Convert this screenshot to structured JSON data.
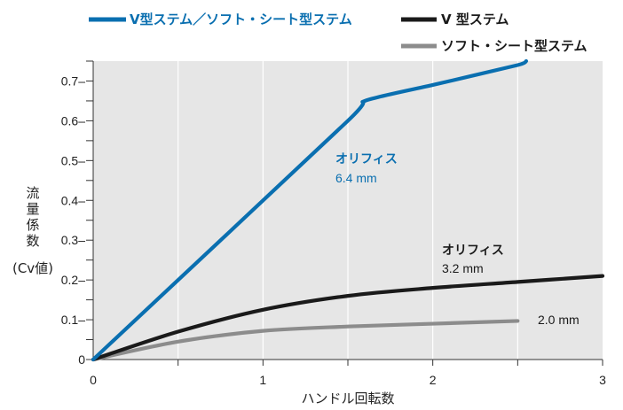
{
  "chart_data": {
    "type": "line",
    "legend": [
      {
        "label": "V型ステム／ソフト・シート型ステム",
        "color": "#0a6fb0"
      },
      {
        "label": "V 型ステム",
        "color": "#1a1a1a"
      },
      {
        "label": "ソフト・シート型ステム",
        "color": "#8c8c8c"
      }
    ],
    "series": [
      {
        "color": "#0a6fb0",
        "x": [
          0,
          1.5,
          1.6,
          2.0,
          2.5,
          2.55
        ],
        "y": [
          0,
          0.6,
          0.65,
          0.69,
          0.74,
          0.75
        ]
      },
      {
        "color": "#1a1a1a",
        "x": [
          0,
          0.5,
          1.0,
          1.5,
          2.0,
          2.5,
          3.0
        ],
        "y": [
          0,
          0.07,
          0.125,
          0.16,
          0.18,
          0.195,
          0.21
        ]
      },
      {
        "color": "#8c8c8c",
        "x": [
          0,
          0.5,
          1.0,
          1.5,
          2.0,
          2.5
        ],
        "y": [
          0,
          0.045,
          0.072,
          0.083,
          0.09,
          0.097
        ]
      }
    ],
    "xlabel": "ハンドル回転数",
    "ylabel_chars": [
      "流",
      "量",
      "係",
      "数"
    ],
    "ylabel_tail": "(Cv値)",
    "xlim": [
      0,
      3
    ],
    "ylim": [
      0,
      0.75
    ],
    "xticks": [
      "0",
      "1",
      "2",
      "3"
    ],
    "yticks": [
      "0",
      "0.1–",
      "0.2–",
      "0.3–",
      "0.4–",
      "0.5–",
      "0.6–",
      "0.7–"
    ],
    "grid": true,
    "annotations": [
      {
        "text": "オリフィス",
        "weight": "bold",
        "color": "#0a6fb0"
      },
      {
        "text": "6.4 mm",
        "weight": "normal",
        "color": "#0a6fb0"
      },
      {
        "text": "オリフィス",
        "weight": "bold",
        "color": "#1a1a1a"
      },
      {
        "text": "3.2 mm",
        "weight": "normal",
        "color": "#1a1a1a"
      },
      {
        "text": "2.0 mm",
        "weight": "normal",
        "color": "#1a1a1a"
      }
    ]
  }
}
